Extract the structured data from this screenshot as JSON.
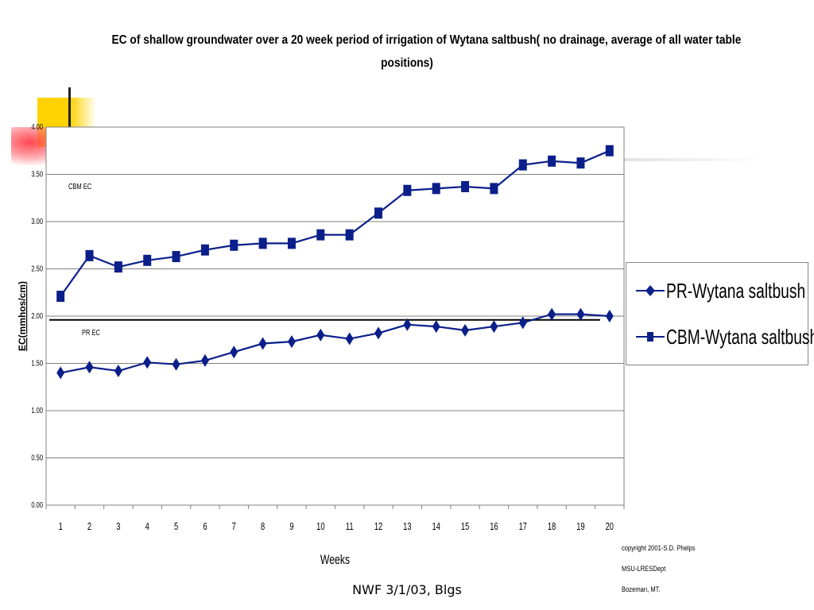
{
  "slide": {
    "footer": "NWF 3/1/03, Blgs",
    "copyright": [
      "copyright 2001-S.D. Phelps",
      "MSU-LRESDept",
      "Bozeman, MT."
    ]
  },
  "chart_data": {
    "type": "line",
    "title_lines": [
      "EC of shallow groundwater over a 20 week period of irrigation of Wytana saltbush( no drainage, average of all water table",
      "positions)"
    ],
    "xlabel": "Weeks",
    "ylabel": "EC(mmhos/cm)",
    "categories": [
      "1",
      "2",
      "3",
      "4",
      "5",
      "6",
      "7",
      "8",
      "9",
      "10",
      "11",
      "12",
      "13",
      "14",
      "15",
      "16",
      "17",
      "18",
      "19",
      "20"
    ],
    "ylim": [
      0,
      4
    ],
    "yticks": [
      "0.00",
      "0.50",
      "1.00",
      "1.50",
      "2.00",
      "2.50",
      "3.00",
      "3.50",
      "4.00"
    ],
    "ytick_values": [
      0,
      0.5,
      1.0,
      1.5,
      2.0,
      2.5,
      3.0,
      3.5,
      4.0
    ],
    "grid": true,
    "legend_position": "right",
    "series": [
      {
        "name": "PR-Wytana saltbush",
        "marker": "diamond",
        "color": "#0b1f8a",
        "values": [
          1.4,
          1.46,
          1.42,
          1.51,
          1.49,
          1.53,
          1.62,
          1.71,
          1.73,
          1.8,
          1.76,
          1.82,
          1.91,
          1.89,
          1.85,
          1.89,
          1.93,
          2.02,
          2.02,
          2.0
        ]
      },
      {
        "name": "CBM-Wytana saltbush",
        "marker": "square",
        "color": "#0b1f8a",
        "values": [
          2.21,
          2.64,
          2.52,
          2.59,
          2.63,
          2.7,
          2.75,
          2.77,
          2.77,
          2.86,
          2.86,
          3.09,
          3.33,
          3.35,
          3.37,
          3.35,
          3.6,
          3.64,
          3.62,
          3.75
        ]
      }
    ],
    "annotations": [
      {
        "text": "CBM EC",
        "near": "top-left"
      },
      {
        "text": "PR EC",
        "near": "reference line"
      }
    ],
    "reference_line": {
      "y": 1.96,
      "color": "#000000"
    }
  }
}
